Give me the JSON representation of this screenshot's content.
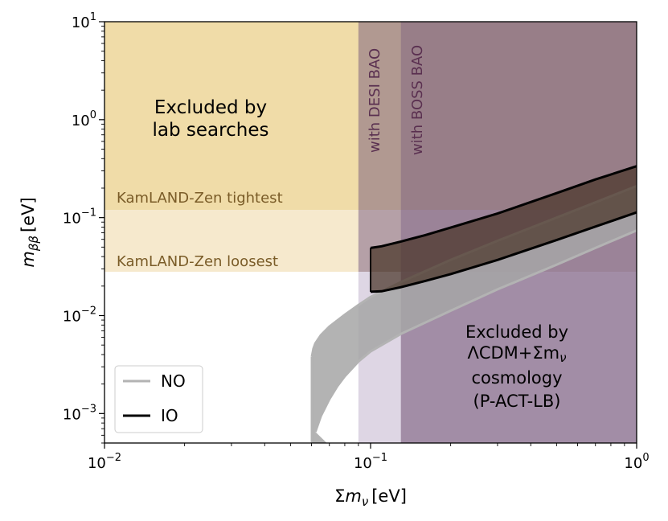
{
  "chart_data": {
    "type": "area",
    "title": "",
    "xlabel": {
      "sym": "Σm",
      "sub": "ν",
      "unit": "[eV]"
    },
    "ylabel": {
      "sym": "m",
      "sub": "ββ",
      "unit": "[eV]"
    },
    "xscale": "log",
    "yscale": "log",
    "xlim": [
      0.01,
      1
    ],
    "ylim": [
      0.0005,
      10
    ],
    "xticks": [
      {
        "value": 0.01,
        "base": "10",
        "exp": "−2"
      },
      {
        "value": 0.1,
        "base": "10",
        "exp": "−1"
      },
      {
        "value": 1,
        "base": "10",
        "exp": "0"
      }
    ],
    "yticks": [
      {
        "value": 0.001,
        "base": "10",
        "exp": "−3"
      },
      {
        "value": 0.01,
        "base": "10",
        "exp": "−2"
      },
      {
        "value": 0.1,
        "base": "10",
        "exp": "−1"
      },
      {
        "value": 1,
        "base": "10",
        "exp": "0"
      },
      {
        "value": 10,
        "base": "10",
        "exp": "1"
      }
    ],
    "regions": [
      {
        "name": "lab-tightest",
        "label": "KamLAND-Zen tightest",
        "y_min": 0.12,
        "color": "#f0dca8"
      },
      {
        "name": "lab-loosest",
        "label": "KamLAND-Zen loosest",
        "y_min": 0.028,
        "y_max": 0.12,
        "color": "#f6e9cd"
      },
      {
        "name": "cosmo-desi",
        "label": "with DESI BAO",
        "x_min": 0.09,
        "color": "#5a3b72",
        "opacity": 0.42
      },
      {
        "name": "cosmo-boss",
        "label": "with BOSS BAO",
        "x_min": 0.13,
        "color": "#5a3b72",
        "opacity": 0.28
      },
      {
        "name": "cosmology-exclusion",
        "x_min": 0.09,
        "y_max": 0.028,
        "color": "#5a3b72",
        "opacity": 0.25
      }
    ],
    "annotations": {
      "lab": [
        "Excluded by",
        "lab searches"
      ],
      "cosmo": [
        "Excluded by",
        "ΛCDM+Σm",
        "cosmology",
        "(P-ACT-LB)"
      ],
      "cosmo_nu": "ν"
    },
    "series": [
      {
        "name": "NO",
        "color": "#b3b3b3",
        "fill": "#a6a6a6",
        "upper": {
          "x": [
            0.0602,
            0.061,
            0.062,
            0.065,
            0.07,
            0.08,
            0.09,
            0.1,
            0.13,
            0.2,
            0.3,
            0.5,
            0.7,
            1.0
          ],
          "y": [
            0.0038,
            0.0046,
            0.0052,
            0.0063,
            0.0077,
            0.0102,
            0.0128,
            0.0155,
            0.022,
            0.037,
            0.058,
            0.1,
            0.143,
            0.21
          ]
        },
        "lower": {
          "x": [
            0.062,
            0.065,
            0.07,
            0.075,
            0.08,
            0.09,
            0.1,
            0.13,
            0.2,
            0.3,
            0.5,
            0.7,
            1.0
          ],
          "y": [
            0.00065,
            0.00094,
            0.0014,
            0.0019,
            0.0024,
            0.0034,
            0.0043,
            0.0065,
            0.0112,
            0.0185,
            0.033,
            0.049,
            0.074
          ]
        },
        "vline": [
          0.0602,
          0.0038,
          0.0005
        ],
        "cusp": [
          0.071,
          0.0005,
          0.0025
        ]
      },
      {
        "name": "IO",
        "color": "#000000",
        "fill": "#4a3528",
        "upper": {
          "x": [
            0.1,
            0.11,
            0.13,
            0.16,
            0.2,
            0.3,
            0.5,
            0.7,
            1.0
          ],
          "y": [
            0.049,
            0.051,
            0.057,
            0.066,
            0.079,
            0.11,
            0.178,
            0.245,
            0.335
          ]
        },
        "lower": {
          "x": [
            0.1,
            0.11,
            0.13,
            0.16,
            0.2,
            0.3,
            0.5,
            0.7,
            1.0
          ],
          "y": [
            0.0175,
            0.0177,
            0.0195,
            0.0225,
            0.0265,
            0.037,
            0.059,
            0.081,
            0.113
          ]
        }
      }
    ],
    "legend": {
      "position": "lower-left",
      "items": [
        "NO",
        "IO"
      ]
    }
  }
}
